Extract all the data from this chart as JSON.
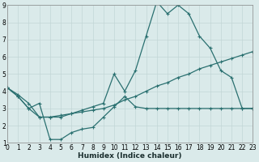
{
  "xlabel": "Humidex (Indice chaleur)",
  "xlim": [
    0,
    23
  ],
  "ylim": [
    1,
    9
  ],
  "xticks": [
    0,
    1,
    2,
    3,
    4,
    5,
    6,
    7,
    8,
    9,
    10,
    11,
    12,
    13,
    14,
    15,
    16,
    17,
    18,
    19,
    20,
    21,
    22,
    23
  ],
  "yticks": [
    1,
    2,
    3,
    4,
    5,
    6,
    7,
    8,
    9
  ],
  "bg_color": "#daeaea",
  "grid_color": "#c2d6d6",
  "line_color": "#2a7070",
  "line1_x": [
    0,
    1,
    2,
    3,
    4,
    5,
    6,
    7,
    8,
    9,
    10,
    11,
    12,
    13,
    14,
    15,
    16,
    17,
    18,
    19,
    20,
    21,
    22,
    23
  ],
  "line1_y": [
    4.2,
    3.7,
    3.0,
    3.3,
    1.2,
    1.2,
    1.6,
    1.8,
    1.9,
    2.5,
    3.1,
    3.7,
    3.1,
    3.0,
    3.0,
    3.0,
    3.0,
    3.0,
    3.0,
    3.0,
    3.0,
    3.0,
    3.0,
    3.0
  ],
  "line2_x": [
    0,
    1,
    2,
    3,
    4,
    5,
    6,
    7,
    8,
    9,
    10,
    11,
    12,
    13,
    14,
    15,
    16,
    17,
    18,
    19,
    20,
    21,
    22,
    23
  ],
  "line2_y": [
    4.2,
    3.8,
    3.3,
    2.5,
    2.5,
    2.6,
    2.7,
    2.8,
    2.9,
    3.0,
    3.2,
    3.5,
    3.7,
    4.0,
    4.3,
    4.5,
    4.8,
    5.0,
    5.3,
    5.5,
    5.7,
    5.9,
    6.1,
    6.3
  ],
  "line3_x": [
    0,
    1,
    2,
    3,
    4,
    5,
    6,
    7,
    8,
    9,
    10,
    11,
    12,
    13,
    14,
    15,
    16,
    17,
    18,
    19,
    20,
    21,
    22,
    23
  ],
  "line3_y": [
    4.2,
    3.7,
    3.0,
    2.5,
    2.5,
    2.5,
    2.7,
    2.9,
    3.1,
    3.3,
    5.0,
    4.0,
    5.2,
    7.2,
    9.2,
    8.5,
    9.0,
    8.5,
    7.2,
    6.5,
    5.2,
    4.8,
    3.0,
    3.0
  ],
  "markersize": 2.0,
  "linewidth": 0.9,
  "tick_fontsize": 5.5,
  "xlabel_fontsize": 6.5
}
